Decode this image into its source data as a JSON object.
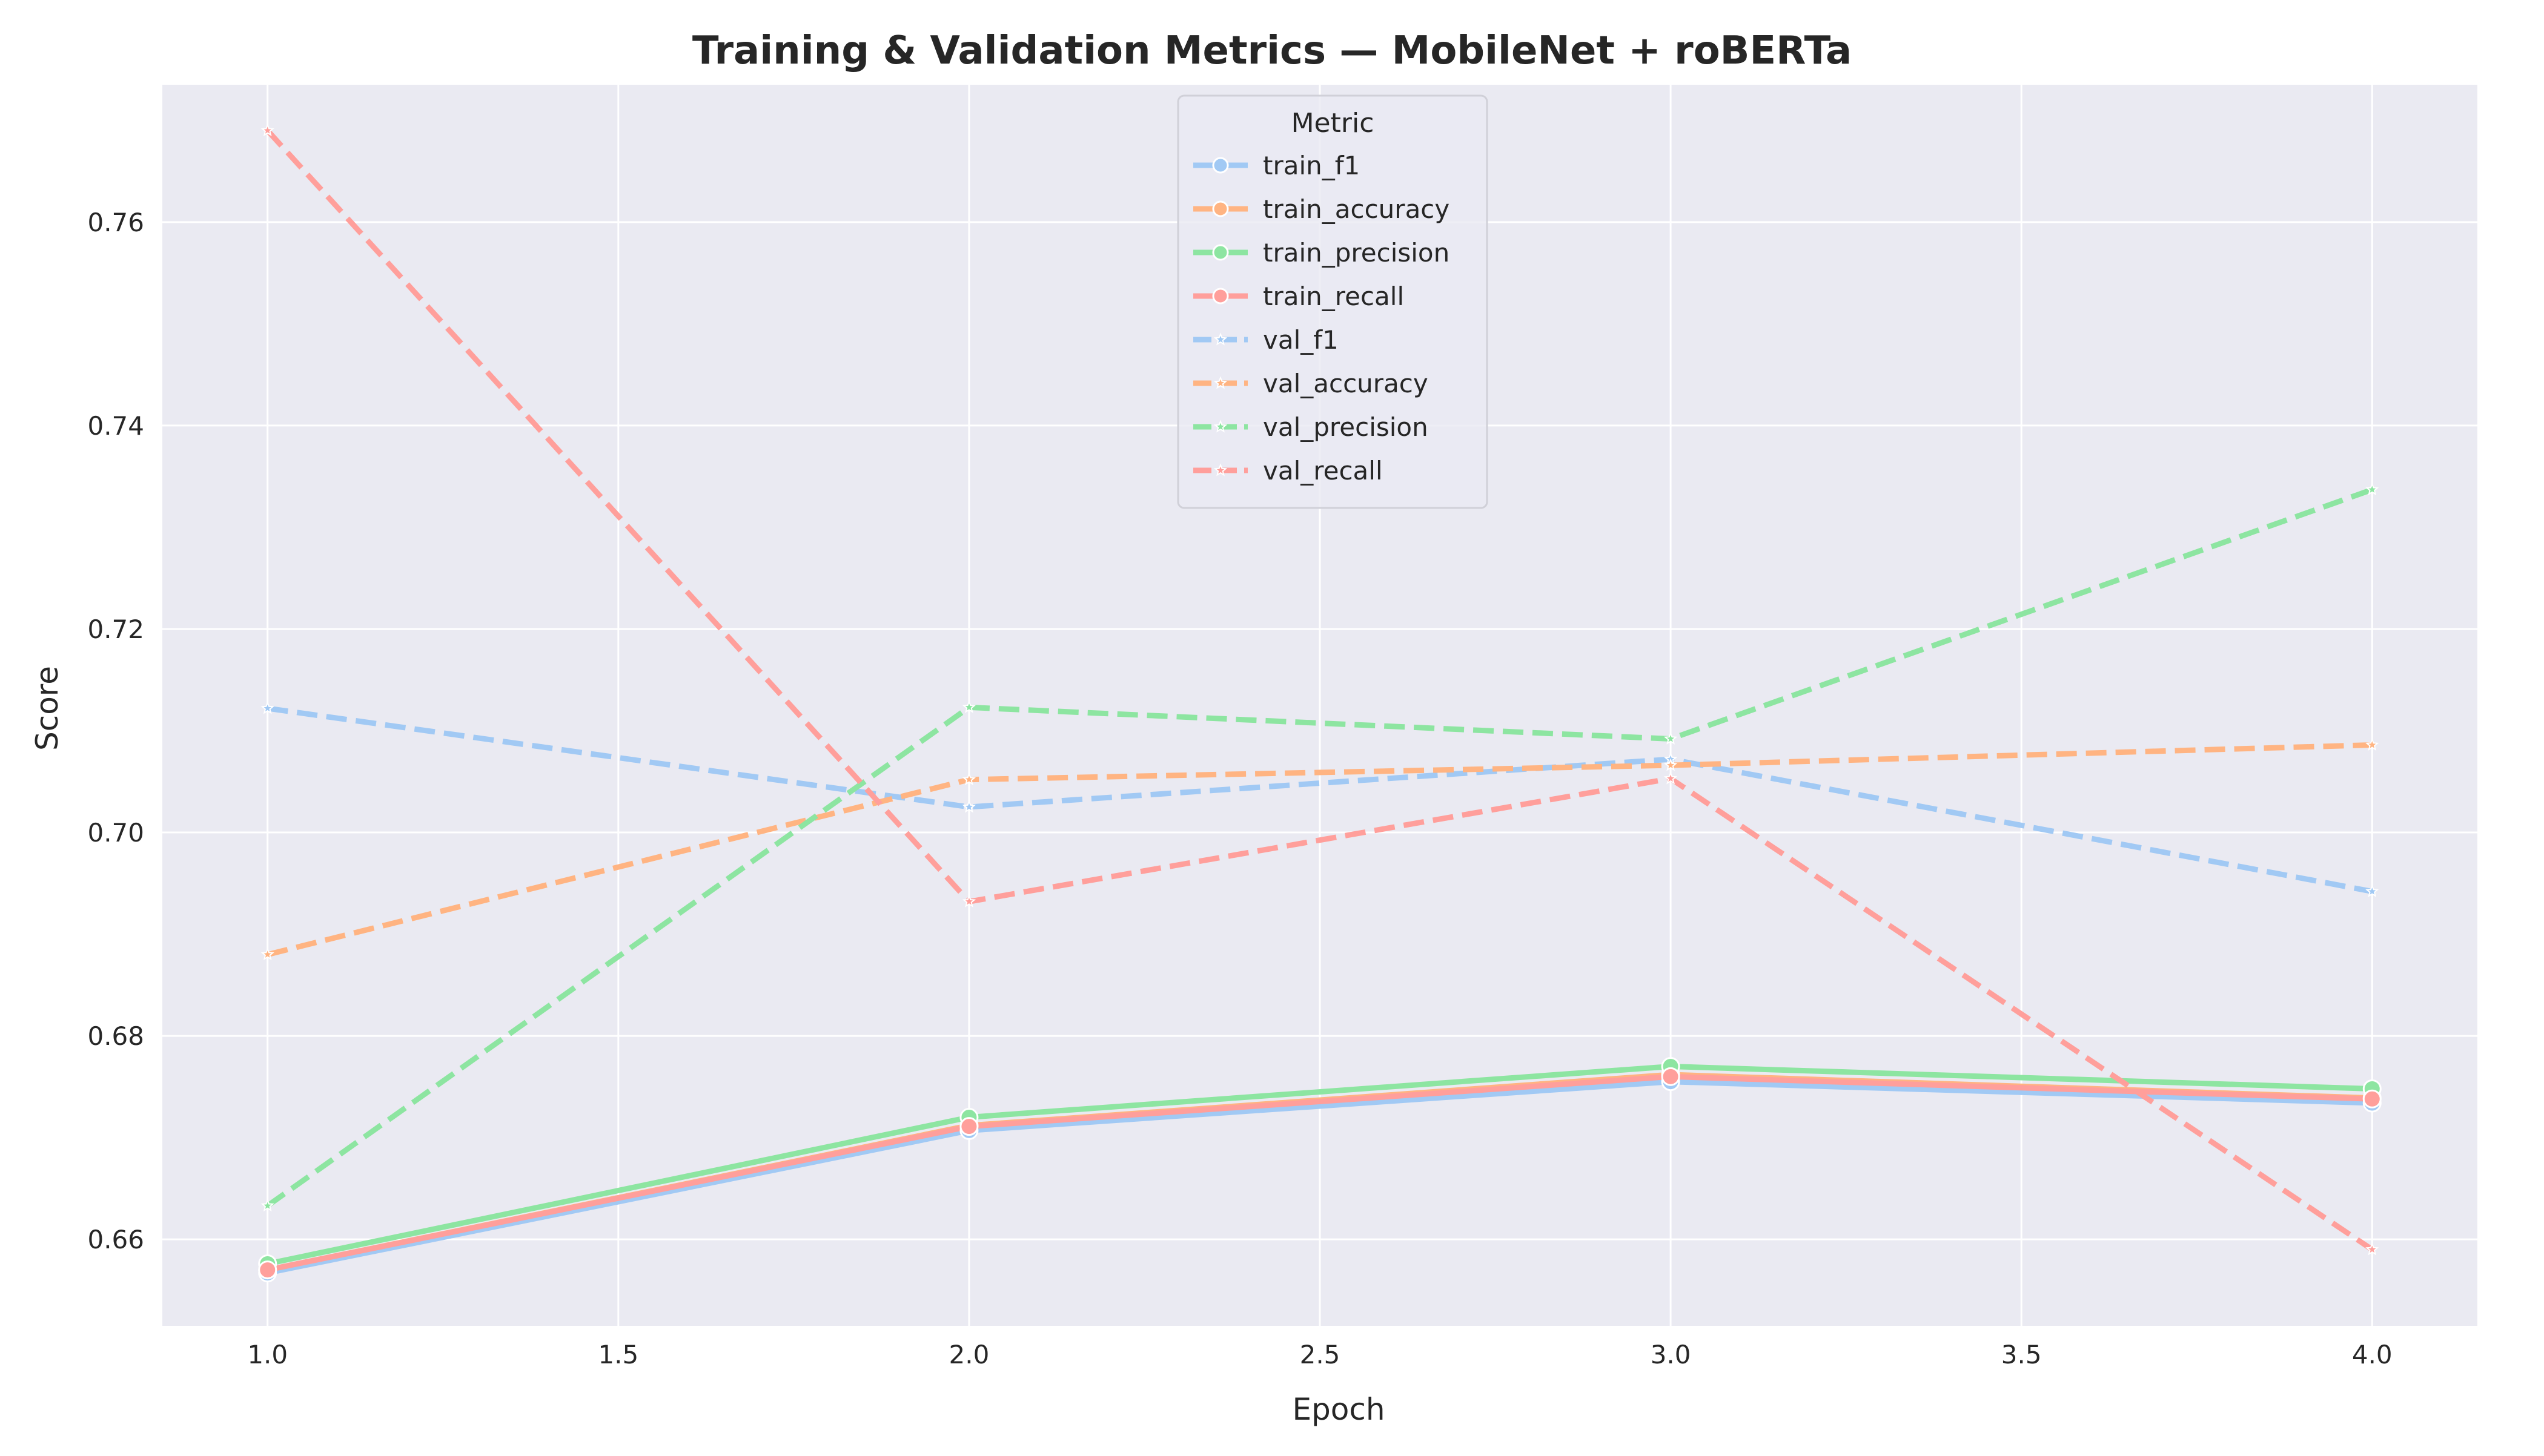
{
  "chart_data": {
    "type": "line",
    "title": "Training & Validation Metrics — MobileNet + roBERTa",
    "xlabel": "Epoch",
    "ylabel": "Score",
    "xlim": [
      0.85,
      4.15
    ],
    "ylim": [
      0.6515,
      0.7735
    ],
    "x_ticks": [
      "1.0",
      "1.5",
      "2.0",
      "2.5",
      "3.0",
      "3.5",
      "4.0"
    ],
    "y_ticks": [
      "0.66",
      "0.68",
      "0.70",
      "0.72",
      "0.74",
      "0.76"
    ],
    "grid": true,
    "legend": {
      "title": "Metric",
      "placement": "top-center"
    },
    "x": [
      1,
      2,
      3,
      4
    ],
    "series": [
      {
        "name": "train_f1",
        "color": "#a1c9f4",
        "style": "solid",
        "marker": "circle",
        "values": [
          0.6567,
          0.6707,
          0.6755,
          0.6734
        ]
      },
      {
        "name": "train_accuracy",
        "color": "#ffb482",
        "style": "solid",
        "marker": "circle",
        "values": [
          0.657,
          0.6712,
          0.6762,
          0.6739
        ]
      },
      {
        "name": "train_precision",
        "color": "#8de5a1",
        "style": "solid",
        "marker": "circle",
        "values": [
          0.6576,
          0.672,
          0.677,
          0.6748
        ]
      },
      {
        "name": "train_recall",
        "color": "#ff9f9b",
        "style": "solid",
        "marker": "circle",
        "values": [
          0.657,
          0.6711,
          0.676,
          0.6738
        ]
      },
      {
        "name": "val_f1",
        "color": "#a1c9f4",
        "style": "dashed",
        "marker": "star",
        "values": [
          0.7122,
          0.7025,
          0.7072,
          0.6942
        ]
      },
      {
        "name": "val_accuracy",
        "color": "#ffb482",
        "style": "dashed",
        "marker": "star",
        "values": [
          0.688,
          0.7052,
          0.7066,
          0.7086
        ]
      },
      {
        "name": "val_precision",
        "color": "#8de5a1",
        "style": "dashed",
        "marker": "star",
        "values": [
          0.6633,
          0.7123,
          0.7092,
          0.7337
        ]
      },
      {
        "name": "val_recall",
        "color": "#ff9f9b",
        "style": "dashed",
        "marker": "star",
        "values": [
          0.769,
          0.6932,
          0.7053,
          0.659
        ]
      }
    ]
  }
}
